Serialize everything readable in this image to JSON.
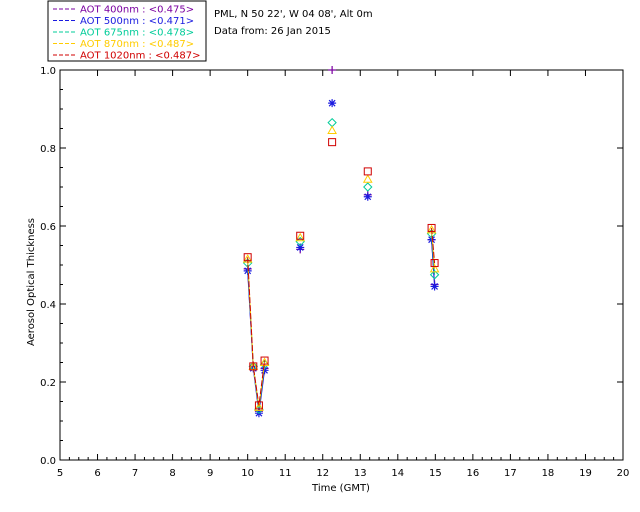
{
  "info": {
    "line1": "PML, N 50 22', W 04 08', Alt 0m",
    "line2": "Data from: 26 Jan 2015"
  },
  "chart_data": {
    "type": "scatter",
    "xlabel": "Time (GMT)",
    "ylabel": "Aerosol Optical Thickness",
    "xlim": [
      5,
      20
    ],
    "ylim": [
      0,
      1
    ],
    "xticks": [
      "5",
      "6",
      "7",
      "8",
      "9",
      "10",
      "11",
      "12",
      "13",
      "14",
      "15",
      "16",
      "17",
      "18",
      "19",
      "20"
    ],
    "yticks": [
      "0.0",
      "0.2",
      "0.4",
      "0.6",
      "0.8",
      "1.0"
    ],
    "legend_position": "top-left (outside plot)",
    "series": [
      {
        "name": "AOT  400nm : <0.475>",
        "color": "#7a00a0",
        "marker": "plus",
        "x": [
          10.0,
          10.15,
          10.3,
          10.45,
          11.4,
          12.25,
          13.2,
          14.9,
          14.98
        ],
        "y": [
          0.49,
          0.24,
          0.125,
          0.235,
          0.54,
          1.0,
          0.68,
          0.565,
          0.45
        ]
      },
      {
        "name": "AOT  500nm : <0.471>",
        "color": "#1a1ae0",
        "marker": "asterisk",
        "x": [
          10.0,
          10.15,
          10.3,
          10.45,
          11.4,
          12.25,
          13.2,
          14.9,
          14.98
        ],
        "y": [
          0.485,
          0.235,
          0.12,
          0.23,
          0.545,
          0.915,
          0.675,
          0.565,
          0.445
        ]
      },
      {
        "name": "AOT  675nm : <0.478>",
        "color": "#00cc99",
        "marker": "diamond",
        "x": [
          10.0,
          10.15,
          10.3,
          10.45,
          11.4,
          12.25,
          13.2,
          14.9,
          14.98
        ],
        "y": [
          0.505,
          0.24,
          0.13,
          0.245,
          0.56,
          0.865,
          0.7,
          0.58,
          0.475
        ]
      },
      {
        "name": "AOT  870nm : <0.487>",
        "color": "#ffcc00",
        "marker": "triangle",
        "x": [
          10.0,
          10.15,
          10.3,
          10.45,
          11.4,
          12.25,
          13.2,
          14.9,
          14.98
        ],
        "y": [
          0.515,
          0.24,
          0.135,
          0.25,
          0.57,
          0.845,
          0.72,
          0.59,
          0.49
        ]
      },
      {
        "name": "AOT 1020nm : <0.487>",
        "color": "#d00000",
        "marker": "square",
        "x": [
          10.0,
          10.15,
          10.3,
          10.45,
          11.4,
          12.25,
          13.2,
          14.9,
          14.98
        ],
        "y": [
          0.52,
          0.24,
          0.14,
          0.255,
          0.575,
          0.815,
          0.74,
          0.595,
          0.505
        ]
      }
    ]
  }
}
